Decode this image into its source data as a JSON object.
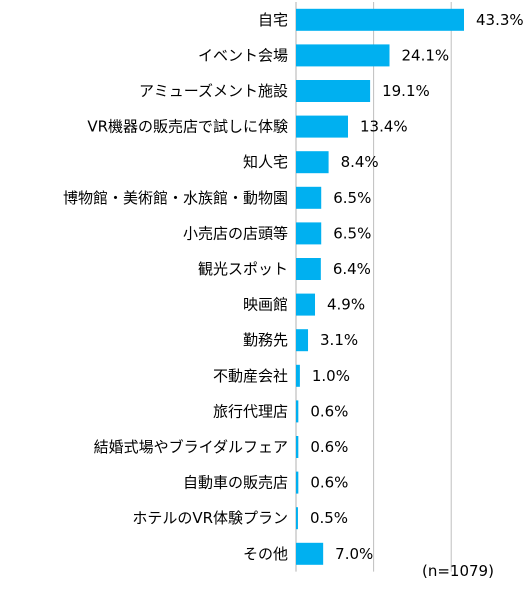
{
  "chart_data": {
    "type": "bar",
    "orientation": "horizontal",
    "categories": [
      "自宅",
      "イベント会場",
      "アミューズメント施設",
      "VR機器の販売店で試しに体験",
      "知人宅",
      "博物館・美術館・水族館・動物園",
      "小売店の店頭等",
      "観光スポット",
      "映画館",
      "勤務先",
      "不動産会社",
      "旅行代理店",
      "結婚式場やブライダルフェア",
      "自動車の販売店",
      "ホテルのVR体験プラン",
      "その他"
    ],
    "values": [
      43.3,
      24.1,
      19.1,
      13.4,
      8.4,
      6.5,
      6.5,
      6.4,
      4.9,
      3.1,
      1.0,
      0.6,
      0.6,
      0.6,
      0.5,
      7.0
    ],
    "value_labels": [
      "43.3%",
      "24.1%",
      "19.1%",
      "13.4%",
      "8.4%",
      "6.5%",
      "6.5%",
      "6.4%",
      "4.9%",
      "3.1%",
      "1.0%",
      "0.6%",
      "0.6%",
      "0.6%",
      "0.5%",
      "7.0%"
    ],
    "xlim": [
      0,
      50
    ],
    "grid": true,
    "bar_color": "#00B0F0",
    "grid_color": "#BFBFBF",
    "annotation": "(n=1079)"
  }
}
